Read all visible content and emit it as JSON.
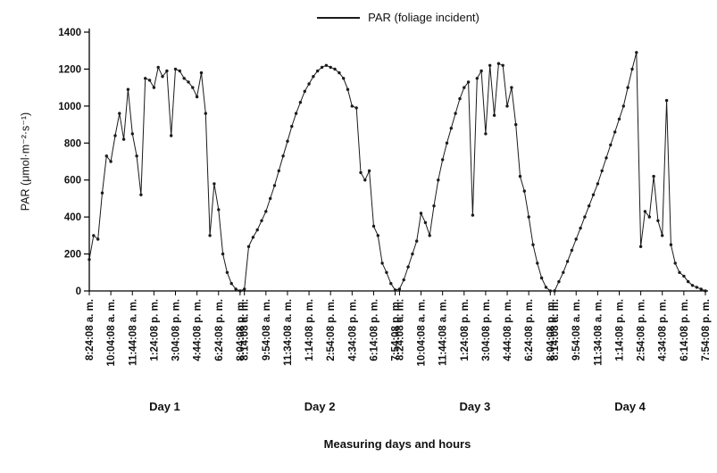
{
  "colors": {
    "line": "#1a1a1a",
    "text": "#111111",
    "background": "#ffffff"
  },
  "legend": {
    "label": "PAR (foliage incident)"
  },
  "axes": {
    "y_label": "PAR (μmol·m⁻²·s⁻¹)",
    "x_label": "Measuring days and hours"
  },
  "chart_data": {
    "type": "line",
    "title": "",
    "ylabel": "PAR (μmol·m⁻²·s⁻¹)",
    "xlabel": "Measuring days and hours",
    "ylim": [
      0,
      1400
    ],
    "yticks": [
      0,
      200,
      400,
      600,
      800,
      1000,
      1200,
      1400
    ],
    "grid": false,
    "legend": [
      "PAR (foliage incident)"
    ],
    "legend_position": "top-center",
    "marker": "dot",
    "points_per_day": 36,
    "ticks_every_points": 5,
    "days": [
      {
        "label": "Day 1",
        "tick_labels": [
          "8:24:08 a. m.",
          "10:04:08 a. m.",
          "11:44:08 a. m.",
          "1:24:08 p. m.",
          "3:04:08 p. m.",
          "4:44:08 p. m.",
          "6:24:08 p. m.",
          "8:04:08 p. m."
        ],
        "values": [
          170,
          300,
          280,
          530,
          730,
          700,
          840,
          960,
          820,
          1090,
          850,
          730,
          520,
          1150,
          1140,
          1100,
          1210,
          1160,
          1190,
          840,
          1200,
          1190,
          1150,
          1130,
          1100,
          1050,
          1180,
          960,
          300,
          580,
          440,
          200,
          100,
          40,
          10,
          0
        ]
      },
      {
        "label": "Day 2",
        "tick_labels": [
          "8:14:08 a. m.",
          "9:54:08 a. m.",
          "11:34:08 a. m.",
          "1:14:08 p. m.",
          "2:54:08 p. m.",
          "4:34:08 p. m.",
          "6:14:08 p. m.",
          "7:54:08 p. m."
        ],
        "values": [
          10,
          240,
          290,
          330,
          380,
          430,
          500,
          570,
          650,
          730,
          810,
          890,
          960,
          1020,
          1080,
          1120,
          1160,
          1190,
          1210,
          1220,
          1210,
          1200,
          1180,
          1150,
          1090,
          1000,
          990,
          640,
          600,
          650,
          350,
          300,
          150,
          100,
          40,
          5
        ]
      },
      {
        "label": "Day 3",
        "tick_labels": [
          "8:24:08 a. m.",
          "10:04:08 a. m.",
          "11:44:08 a. m.",
          "1:24:08 p. m.",
          "3:04:08 p. m.",
          "4:44:08 p. m.",
          "6:24:08 p. m.",
          "8:04:08 p. m."
        ],
        "values": [
          10,
          60,
          130,
          200,
          270,
          420,
          370,
          300,
          460,
          600,
          710,
          800,
          880,
          960,
          1040,
          1100,
          1130,
          410,
          1150,
          1190,
          850,
          1220,
          950,
          1230,
          1220,
          1000,
          1100,
          900,
          620,
          540,
          400,
          250,
          150,
          70,
          20,
          0
        ]
      },
      {
        "label": "Day 4",
        "tick_labels": [
          "8:14:08 a. m.",
          "9:54:08 a. m.",
          "11:34:08 a. m.",
          "1:14:08 p. m.",
          "2:54:08 p. m.",
          "4:34:08 p. m.",
          "6:14:08 p. m.",
          "7:54:08 p. m."
        ],
        "values": [
          0,
          50,
          100,
          160,
          220,
          280,
          340,
          400,
          460,
          520,
          580,
          650,
          720,
          790,
          860,
          930,
          1000,
          1100,
          1200,
          1290,
          240,
          430,
          400,
          620,
          380,
          300,
          1030,
          250,
          150,
          100,
          80,
          50,
          30,
          20,
          10,
          0
        ]
      }
    ]
  }
}
